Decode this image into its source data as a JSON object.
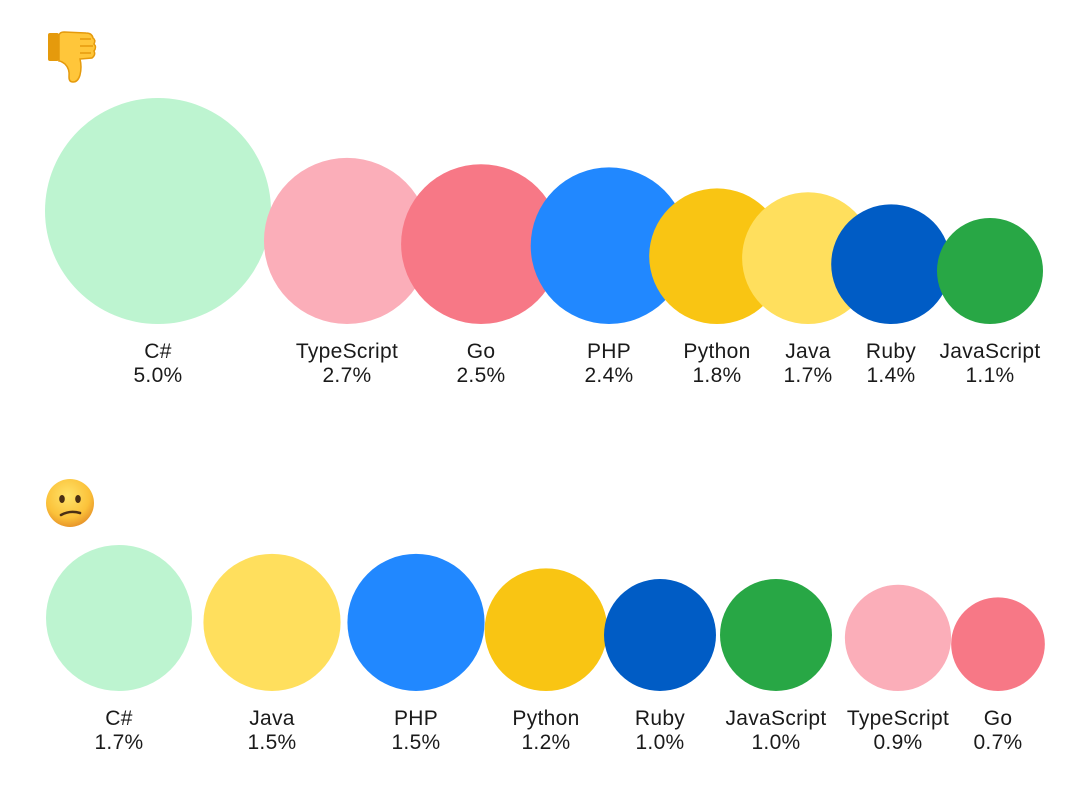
{
  "chart_data": [
    {
      "type": "bubble",
      "header_icon": "thumbs-down-emoji",
      "categories": [
        "C#",
        "TypeScript",
        "Go",
        "PHP",
        "Python",
        "Java",
        "Ruby",
        "JavaScript"
      ],
      "values": [
        5.0,
        2.7,
        2.5,
        2.4,
        1.8,
        1.7,
        1.4,
        1.1
      ],
      "labels": [
        "5.0%",
        "2.7%",
        "2.5%",
        "2.4%",
        "1.8%",
        "1.7%",
        "1.4%",
        "1.1%"
      ]
    },
    {
      "type": "bubble",
      "header_icon": "confused-face-emoji",
      "categories": [
        "C#",
        "Java",
        "PHP",
        "Python",
        "Ruby",
        "JavaScript",
        "TypeScript",
        "Go"
      ],
      "values": [
        1.7,
        1.5,
        1.5,
        1.2,
        1.0,
        1.0,
        0.9,
        0.7
      ],
      "labels": [
        "1.7%",
        "1.5%",
        "1.5%",
        "1.2%",
        "1.0%",
        "1.0%",
        "0.9%",
        "0.7%"
      ]
    }
  ],
  "language_colors": {
    "C#": "#bdf4d0",
    "TypeScript": "#fbaeb9",
    "Go": "#f77886",
    "PHP": "#2188ff",
    "Python": "#f9c513",
    "Java": "#ffdf5d",
    "Ruby": "#005cc5",
    "JavaScript": "#28a745"
  }
}
